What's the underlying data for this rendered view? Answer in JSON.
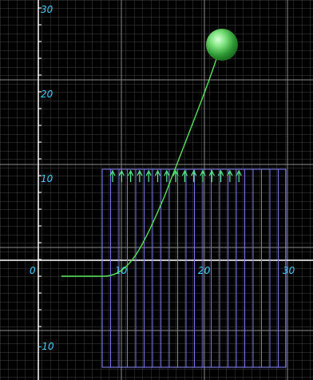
{
  "simulation": {
    "x_tick_labels": [
      "0",
      "10",
      "20",
      "30"
    ],
    "y_tick_labels": [
      "30",
      "20",
      "10",
      "-10"
    ],
    "colors": {
      "background": "#000000",
      "grid_minor": "#3f3f3f",
      "grid_major": "#8b8b8b",
      "axis": "#ffffff",
      "labels": "#3fd3ff",
      "field_region": "#8888ff",
      "arrows": "#56f08f",
      "trajectory": "#56e35a",
      "ball": "#5fd65f"
    },
    "icons": [
      "field-arrow-icon",
      "ball-icon"
    ]
  }
}
